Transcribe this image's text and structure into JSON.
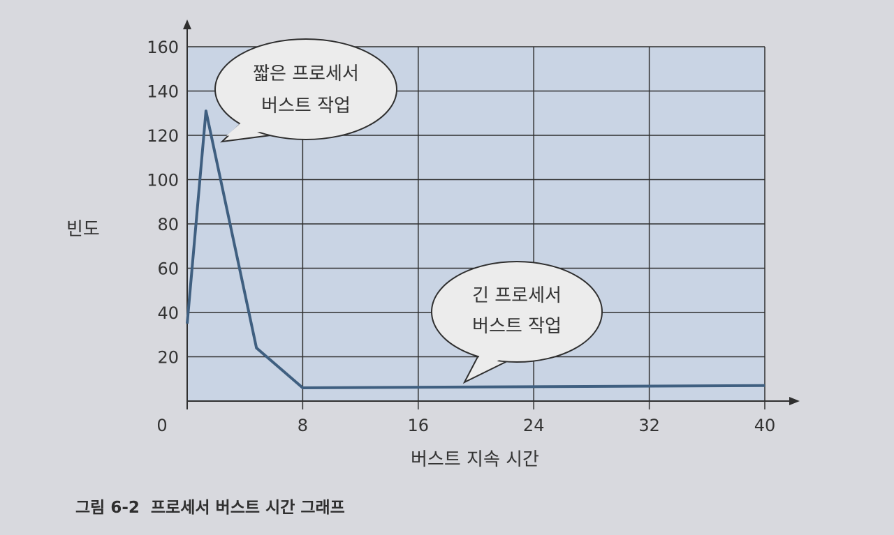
{
  "chart_data": {
    "type": "line",
    "caption": "그림 6-2  프로세서 버스트 시간 그래프",
    "xlabel": "버스트 지속 시간",
    "ylabel": "빈도",
    "xlim": [
      0,
      40
    ],
    "ylim": [
      0,
      160
    ],
    "x_ticks": [
      0,
      8,
      16,
      24,
      32,
      40
    ],
    "y_ticks": [
      20,
      40,
      60,
      80,
      100,
      120,
      140,
      160
    ],
    "grid": true,
    "series": [
      {
        "color": "#3f5f80",
        "points": [
          {
            "x": 0,
            "y": 35
          },
          {
            "x": 1.3,
            "y": 131
          },
          {
            "x": 4.8,
            "y": 24
          },
          {
            "x": 8,
            "y": 6
          },
          {
            "x": 40,
            "y": 7
          }
        ]
      }
    ],
    "annotations": [
      {
        "lines": [
          "짧은 프로세서",
          "버스트 작업"
        ]
      },
      {
        "lines": [
          "긴 프로세서",
          "버스트 작업"
        ]
      }
    ],
    "colors": {
      "plot_area": "#c9d4e4",
      "grid": "#2f2f2f",
      "line": "#3f5f80"
    }
  }
}
